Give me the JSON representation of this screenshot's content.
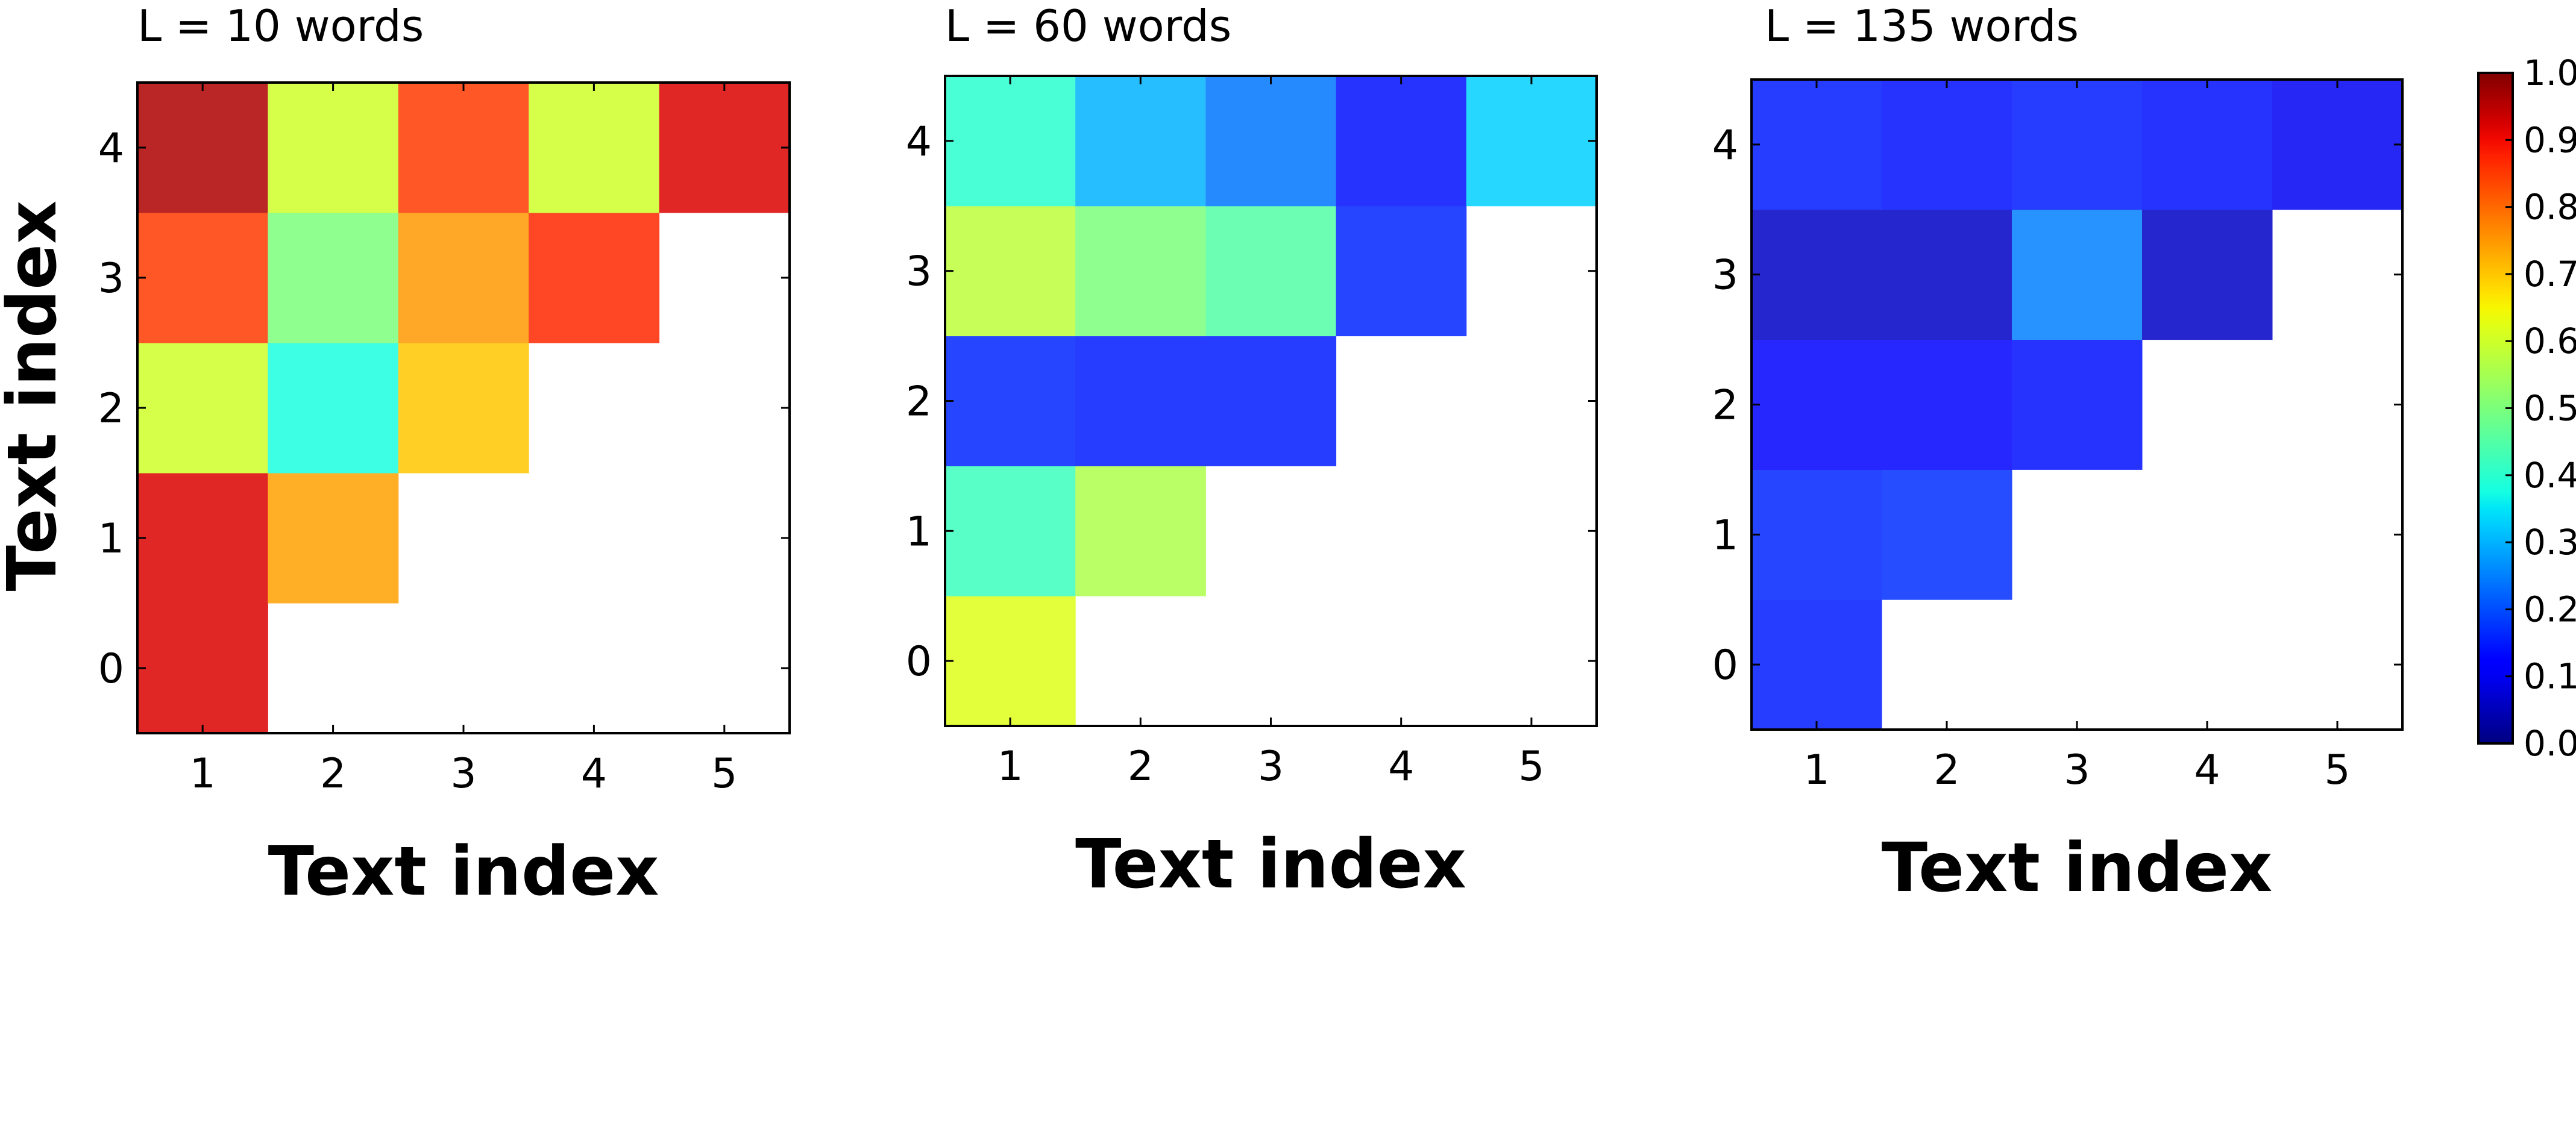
{
  "colorbar": {
    "ticks": [
      "0.0",
      "0.1",
      "0.2",
      "0.3",
      "0.4",
      "0.5",
      "0.6",
      "0.7",
      "0.8",
      "0.9",
      "1.0"
    ],
    "range": [
      0,
      1
    ],
    "colormap": "jet"
  },
  "chart_data": [
    {
      "type": "heatmap",
      "title": "L = 10 words",
      "xlabel": "Text index",
      "ylabel": "Text index",
      "x_ticks": [
        "1",
        "2",
        "3",
        "4",
        "5"
      ],
      "y_ticks": [
        "0",
        "1",
        "2",
        "3",
        "4"
      ],
      "clim": [
        0,
        1
      ],
      "values": [
        [
          0.92,
          null,
          null,
          null,
          null
        ],
        [
          0.92,
          0.74,
          null,
          null,
          null
        ],
        [
          0.6,
          0.38,
          0.7,
          null,
          null
        ],
        [
          0.85,
          0.5,
          0.75,
          0.87,
          null
        ],
        [
          0.96,
          0.6,
          0.85,
          0.6,
          0.92
        ]
      ]
    },
    {
      "type": "heatmap",
      "title": "L = 60 words",
      "xlabel": "Text index",
      "ylabel": "",
      "x_ticks": [
        "1",
        "2",
        "3",
        "4",
        "5"
      ],
      "y_ticks": [
        "0",
        "1",
        "2",
        "3",
        "4"
      ],
      "clim": [
        0,
        1
      ],
      "values": [
        [
          0.62,
          null,
          null,
          null,
          null
        ],
        [
          0.42,
          0.56,
          null,
          null,
          null
        ],
        [
          0.16,
          0.15,
          0.15,
          null,
          null
        ],
        [
          0.58,
          0.5,
          0.45,
          0.16,
          null
        ],
        [
          0.4,
          0.3,
          0.24,
          0.14,
          0.33
        ]
      ]
    },
    {
      "type": "heatmap",
      "title": "L = 135 words",
      "xlabel": "Text index",
      "ylabel": "",
      "x_ticks": [
        "1",
        "2",
        "3",
        "4",
        "5"
      ],
      "y_ticks": [
        "0",
        "1",
        "2",
        "3",
        "4"
      ],
      "clim": [
        0,
        1
      ],
      "values": [
        [
          0.15,
          null,
          null,
          null,
          null
        ],
        [
          0.16,
          0.17,
          null,
          null,
          null
        ],
        [
          0.12,
          0.11,
          0.14,
          null,
          null
        ],
        [
          0.06,
          0.06,
          0.25,
          0.06,
          null
        ],
        [
          0.15,
          0.14,
          0.15,
          0.14,
          0.1
        ]
      ]
    }
  ]
}
